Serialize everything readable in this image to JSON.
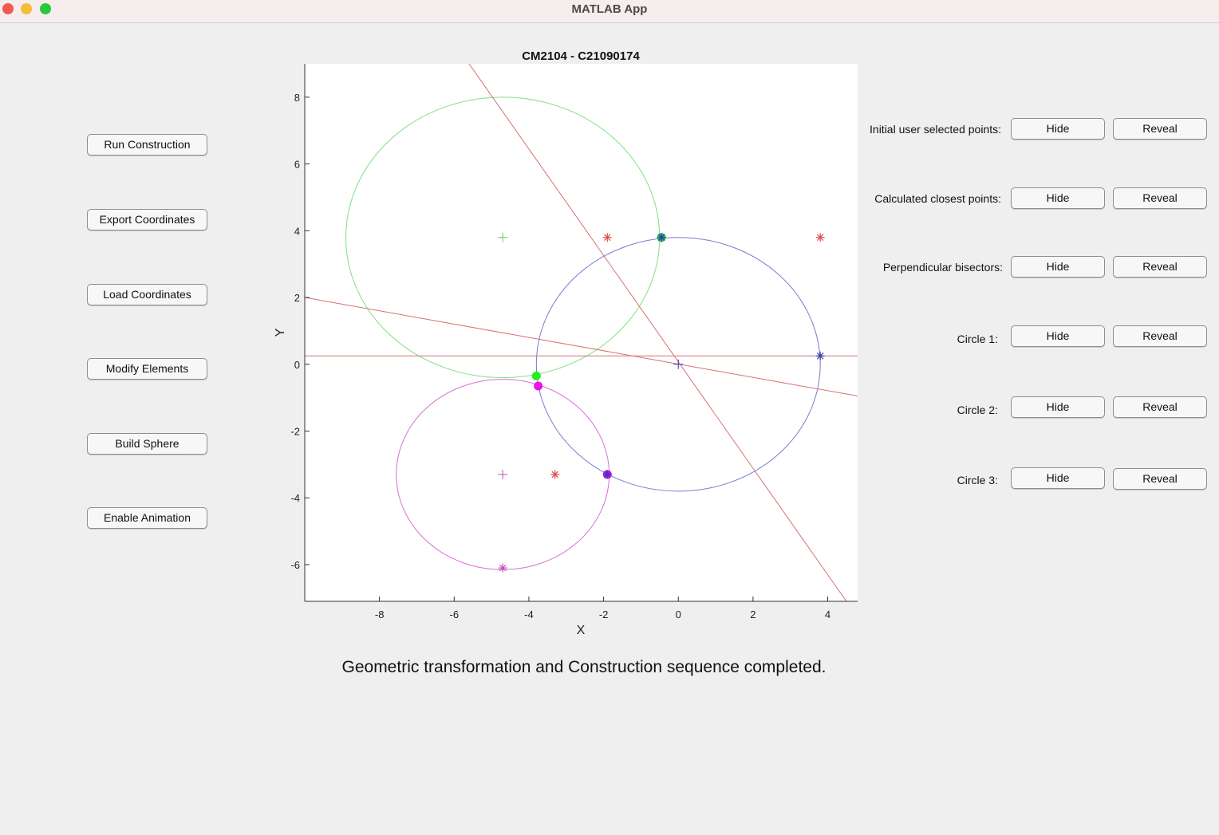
{
  "window": {
    "title": "MATLAB App"
  },
  "left_buttons": [
    {
      "label": "Run Construction",
      "name": "run-construction-button"
    },
    {
      "label": "Export Coordinates",
      "name": "export-coordinates-button"
    },
    {
      "label": "Load Coordinates",
      "name": "load-coordinates-button"
    },
    {
      "label": "Modify Elements",
      "name": "modify-elements-button"
    },
    {
      "label": "Build Sphere",
      "name": "build-sphere-button"
    },
    {
      "label": "Enable Animation",
      "name": "enable-animation-button"
    }
  ],
  "right_controls": [
    {
      "label": "Initial user selected points:",
      "hide": "Hide",
      "reveal": "Reveal",
      "key": "initial-points"
    },
    {
      "label": "Calculated closest points:",
      "hide": "Hide",
      "reveal": "Reveal",
      "key": "closest-points"
    },
    {
      "label": "Perpendicular bisectors:",
      "hide": "Hide",
      "reveal": "Reveal",
      "key": "bisectors"
    },
    {
      "label": "Circle 1:",
      "hide": "Hide",
      "reveal": "Reveal",
      "key": "circle-1"
    },
    {
      "label": "Circle 2:",
      "hide": "Hide",
      "reveal": "Reveal",
      "key": "circle-2"
    },
    {
      "label": "Circle 3:",
      "hide": "Hide",
      "reveal": "Reveal",
      "key": "circle-3"
    }
  ],
  "status": {
    "text": "Geometric transformation and Construction sequence completed."
  },
  "chart_data": {
    "type": "scatter",
    "title": "CM2104 - C21090174",
    "xlabel": "X",
    "ylabel": "Y",
    "xlim": [
      -10,
      4.8
    ],
    "ylim": [
      -7.1,
      9
    ],
    "xticks": [
      -8,
      -6,
      -4,
      -2,
      0,
      2,
      4
    ],
    "yticks": [
      -6,
      -4,
      -2,
      0,
      2,
      4,
      6,
      8
    ],
    "grid": false,
    "legend": "none",
    "circles": [
      {
        "color": "#7fe07f",
        "cx": -4.7,
        "cy": 3.8,
        "r": 4.2
      },
      {
        "color": "#7a7ad0",
        "cx": 0,
        "cy": 0,
        "r": 3.8
      },
      {
        "color": "#d870d8",
        "cx": -4.7,
        "cy": -3.3,
        "r": 2.85
      }
    ],
    "lines": [
      {
        "color": "#d87070",
        "x": [
          -5.6,
          4.5
        ],
        "y": [
          9,
          -7.1
        ]
      },
      {
        "color": "#d87070",
        "x": [
          -10,
          4.8
        ],
        "y": [
          2.0,
          -0.95
        ]
      },
      {
        "color": "#d87070",
        "x": [
          -10,
          4.8
        ],
        "y": [
          0.25,
          0.25
        ]
      }
    ],
    "markers": [
      {
        "x": -4.7,
        "y": 3.8,
        "marker": "plus",
        "color": "#5fcf5f"
      },
      {
        "x": -1.9,
        "y": 3.8,
        "marker": "star",
        "color": "#e04a4a"
      },
      {
        "x": 3.8,
        "y": 3.8,
        "marker": "star",
        "color": "#e04a4a"
      },
      {
        "x": -0.45,
        "y": 3.8,
        "marker": "dot",
        "color": "#1ec84a"
      },
      {
        "x": -0.45,
        "y": 3.8,
        "marker": "star",
        "color": "#3a3ab0"
      },
      {
        "x": 3.8,
        "y": 0.25,
        "marker": "star",
        "color": "#3a3ab0"
      },
      {
        "x": 0,
        "y": 0,
        "marker": "plus",
        "color": "#3a3ab0"
      },
      {
        "x": -3.8,
        "y": -0.35,
        "marker": "dot",
        "color": "#22ee22"
      },
      {
        "x": -3.75,
        "y": -0.65,
        "marker": "dot",
        "color": "#ee11ee"
      },
      {
        "x": -4.7,
        "y": -3.3,
        "marker": "plus",
        "color": "#c050c0"
      },
      {
        "x": -3.3,
        "y": -3.3,
        "marker": "star",
        "color": "#e04a4a"
      },
      {
        "x": -1.9,
        "y": -3.3,
        "marker": "dot",
        "color": "#cc11ee"
      },
      {
        "x": -1.9,
        "y": -3.3,
        "marker": "star",
        "color": "#3a3ab0"
      },
      {
        "x": -4.7,
        "y": -6.1,
        "marker": "star",
        "color": "#c050c0"
      }
    ]
  }
}
